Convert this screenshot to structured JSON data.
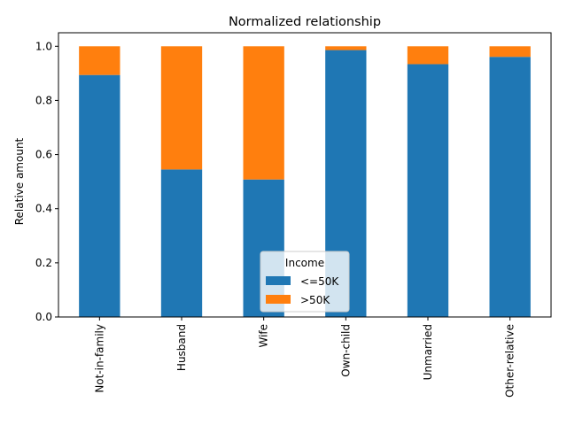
{
  "chart_data": {
    "type": "bar",
    "stacked": true,
    "title": "Normalized relationship",
    "xlabel": "",
    "ylabel": "Relative amount",
    "ylim": [
      0,
      1.05
    ],
    "yticks": [
      "0.0",
      "0.2",
      "0.4",
      "0.6",
      "0.8",
      "1.0"
    ],
    "categories": [
      "Not-in-family",
      "Husband",
      "Wife",
      "Own-child",
      "Unmarried",
      "Other-relative"
    ],
    "series": [
      {
        "name": "<=50K",
        "color": "#1f77b4",
        "values": [
          0.894,
          0.545,
          0.508,
          0.986,
          0.934,
          0.961
        ]
      },
      {
        "name": ">50K",
        "color": "#ff7f0e",
        "values": [
          0.106,
          0.455,
          0.492,
          0.014,
          0.066,
          0.039
        ]
      }
    ],
    "legend": {
      "title": "Income",
      "placement": "lower-center"
    },
    "grid": false
  }
}
